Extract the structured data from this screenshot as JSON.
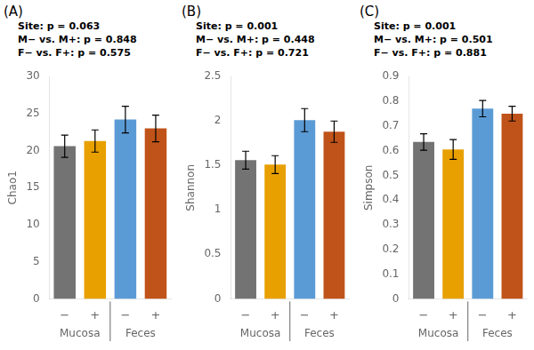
{
  "chart_data": [
    {
      "type": "bar",
      "title": "(A)",
      "ylabel": "Chao1",
      "annotations": [
        "Site: p = 0.063",
        "M− vs. M+: p = 0.848",
        "F− vs. F+: p = 0.575"
      ],
      "categories": [
        "−",
        "+",
        "−",
        "+"
      ],
      "group_labels": [
        "Mucosa",
        "Feces"
      ],
      "values": [
        20.6,
        21.3,
        24.2,
        23.0
      ],
      "errors": [
        1.5,
        1.5,
        1.8,
        1.8
      ],
      "colors": [
        "#737373",
        "#E8A000",
        "#5B9BD5",
        "#C0531A"
      ],
      "ylim": [
        0,
        30
      ],
      "yticks": [
        0,
        5,
        10,
        15,
        20,
        25,
        30
      ],
      "grid": false
    },
    {
      "type": "bar",
      "title": "(B)",
      "ylabel": "Shannon",
      "annotations": [
        "Site: p = 0.001",
        "M− vs. M+: p = 0.448",
        "F− vs. F+: p = 0.721"
      ],
      "categories": [
        "−",
        "+",
        "−",
        "+"
      ],
      "group_labels": [
        "Mucosa",
        "Feces"
      ],
      "values": [
        1.56,
        1.51,
        2.01,
        1.88
      ],
      "errors": [
        0.1,
        0.1,
        0.13,
        0.12
      ],
      "colors": [
        "#737373",
        "#E8A000",
        "#5B9BD5",
        "#C0531A"
      ],
      "ylim": [
        0,
        2.5
      ],
      "yticks": [
        0,
        0.5,
        1,
        1.5,
        2,
        2.5
      ],
      "grid": false
    },
    {
      "type": "bar",
      "title": "(C)",
      "ylabel": "Simpson",
      "annotations": [
        "Site: p = 0.001",
        "M− vs. M+: p = 0.501",
        "F− vs. F+: p = 0.881"
      ],
      "categories": [
        "−",
        "+",
        "−",
        "+"
      ],
      "group_labels": [
        "Mucosa",
        "Feces"
      ],
      "values": [
        0.635,
        0.605,
        0.77,
        0.75
      ],
      "errors": [
        0.033,
        0.04,
        0.033,
        0.03
      ],
      "colors": [
        "#737373",
        "#E8A000",
        "#5B9BD5",
        "#C0531A"
      ],
      "ylim": [
        0,
        0.9
      ],
      "yticks": [
        0,
        0.1,
        0.2,
        0.3,
        0.4,
        0.5,
        0.6,
        0.7,
        0.8,
        0.9
      ],
      "grid": false
    }
  ]
}
